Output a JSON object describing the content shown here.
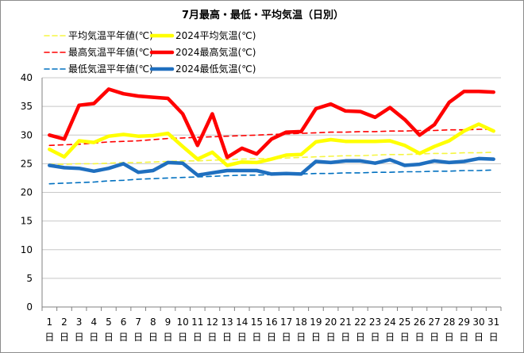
{
  "chart_data": {
    "type": "line",
    "title": "7月最高・最低・平均気温（日別）",
    "xlabel": "",
    "ylabel": "",
    "ylim": [
      0,
      40
    ],
    "yticks": [
      0,
      5,
      10,
      15,
      20,
      25,
      30,
      35,
      40
    ],
    "grid": "horizontal",
    "legend_position": "top-left",
    "categories": [
      "1",
      "2",
      "3",
      "4",
      "5",
      "6",
      "7",
      "8",
      "9",
      "10",
      "11",
      "12",
      "13",
      "14",
      "15",
      "16",
      "17",
      "18",
      "19",
      "20",
      "21",
      "22",
      "23",
      "24",
      "25",
      "26",
      "27",
      "28",
      "29",
      "30",
      "31"
    ],
    "category_suffix": "日",
    "series": [
      {
        "name": "平均気温平年値(℃)",
        "color": "#f5f542",
        "style": "dashed",
        "values": [
          24.9,
          24.9,
          25.0,
          25.0,
          25.1,
          25.2,
          25.2,
          25.3,
          25.4,
          25.5,
          25.5,
          25.6,
          25.7,
          25.8,
          25.9,
          25.9,
          26.0,
          26.1,
          26.2,
          26.3,
          26.4,
          26.4,
          26.5,
          26.6,
          26.6,
          26.7,
          26.8,
          26.8,
          26.9,
          26.9,
          27.0
        ]
      },
      {
        "name": "2024平均気温(℃)",
        "color": "#ffff00",
        "style": "solid",
        "values": [
          27.5,
          26.2,
          29.0,
          28.7,
          29.8,
          30.1,
          29.8,
          29.9,
          30.3,
          28.0,
          25.8,
          27.0,
          24.7,
          25.3,
          25.2,
          25.8,
          26.5,
          26.6,
          28.8,
          29.2,
          28.9,
          28.9,
          28.9,
          29.0,
          28.2,
          26.8,
          28.0,
          29.0,
          30.7,
          31.9,
          30.7
        ]
      },
      {
        "name": "最高気温平年値(℃)",
        "color": "#ff0000",
        "style": "dashed",
        "values": [
          28.2,
          28.3,
          28.4,
          28.6,
          28.8,
          28.9,
          29.0,
          29.2,
          29.4,
          29.5,
          29.6,
          29.7,
          29.8,
          29.9,
          30.0,
          30.1,
          30.2,
          30.3,
          30.4,
          30.5,
          30.5,
          30.6,
          30.6,
          30.7,
          30.7,
          30.8,
          30.8,
          30.9,
          30.9,
          31.0,
          31.0
        ]
      },
      {
        "name": "2024最高気温(℃)",
        "color": "#ff0000",
        "style": "solid",
        "values": [
          30.0,
          29.3,
          35.2,
          35.5,
          38.0,
          37.2,
          36.8,
          36.6,
          36.4,
          33.7,
          28.2,
          33.7,
          26.1,
          27.7,
          26.7,
          29.3,
          30.5,
          30.6,
          34.6,
          35.4,
          34.2,
          34.1,
          33.1,
          34.8,
          32.7,
          30.0,
          31.8,
          35.7,
          37.6,
          37.6,
          37.5
        ]
      },
      {
        "name": "最低気温平年値(℃)",
        "color": "#0070c0",
        "style": "dashed",
        "values": [
          21.5,
          21.6,
          21.7,
          21.8,
          22.0,
          22.1,
          22.3,
          22.4,
          22.5,
          22.6,
          22.7,
          22.8,
          22.9,
          23.0,
          23.0,
          23.1,
          23.2,
          23.2,
          23.3,
          23.3,
          23.4,
          23.4,
          23.5,
          23.5,
          23.6,
          23.6,
          23.7,
          23.7,
          23.8,
          23.8,
          23.9
        ]
      },
      {
        "name": "2024最低気温(℃)",
        "color": "#1f6fbf",
        "style": "solid",
        "values": [
          24.7,
          24.3,
          24.2,
          23.7,
          24.2,
          25.0,
          23.5,
          23.8,
          25.2,
          25.1,
          23.0,
          23.4,
          23.8,
          23.8,
          23.8,
          23.2,
          23.3,
          23.2,
          25.4,
          25.2,
          25.5,
          25.5,
          25.1,
          25.7,
          24.7,
          24.9,
          25.5,
          25.2,
          25.4,
          25.9,
          25.8
        ]
      }
    ]
  }
}
